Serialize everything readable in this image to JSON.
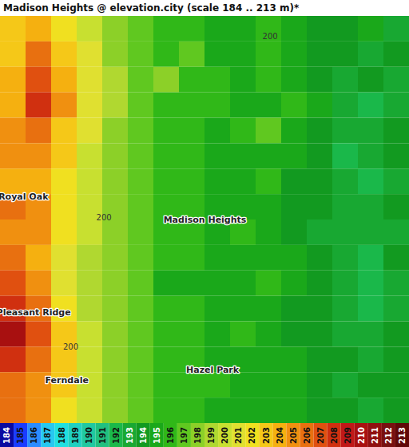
{
  "chart_data": {
    "type": "heatmap",
    "title": "Madison Heights @ elevation.city (scale 184 .. 213 m)*",
    "cells": [
      [
        203,
        204,
        202,
        200,
        198,
        197,
        196,
        196,
        195,
        195,
        196,
        195,
        194,
        194,
        195,
        193
      ],
      [
        203,
        206,
        203,
        201,
        198,
        197,
        196,
        197,
        195,
        195,
        196,
        195,
        194,
        194,
        193,
        194
      ],
      [
        204,
        207,
        204,
        201,
        199,
        197,
        198,
        196,
        196,
        195,
        196,
        195,
        194,
        193,
        194,
        193
      ],
      [
        204,
        208,
        205,
        201,
        199,
        197,
        196,
        196,
        196,
        195,
        195,
        196,
        195,
        193,
        192,
        193
      ],
      [
        205,
        206,
        203,
        201,
        198,
        197,
        196,
        196,
        195,
        196,
        197,
        195,
        194,
        193,
        193,
        194
      ],
      [
        205,
        205,
        203,
        200,
        198,
        197,
        196,
        196,
        195,
        195,
        195,
        195,
        194,
        192,
        193,
        194
      ],
      [
        204,
        204,
        202,
        200,
        198,
        197,
        196,
        196,
        195,
        195,
        196,
        194,
        194,
        193,
        192,
        193
      ],
      [
        206,
        205,
        202,
        200,
        198,
        197,
        196,
        196,
        195,
        195,
        195,
        194,
        194,
        193,
        193,
        194
      ],
      [
        205,
        205,
        202,
        200,
        198,
        197,
        196,
        196,
        195,
        196,
        195,
        194,
        193,
        193,
        193,
        193
      ],
      [
        206,
        204,
        201,
        199,
        198,
        197,
        196,
        196,
        195,
        195,
        195,
        195,
        194,
        193,
        192,
        194
      ],
      [
        207,
        205,
        201,
        199,
        198,
        197,
        195,
        195,
        195,
        195,
        196,
        195,
        194,
        193,
        192,
        193
      ],
      [
        208,
        206,
        202,
        199,
        198,
        197,
        196,
        196,
        195,
        195,
        195,
        194,
        194,
        193,
        192,
        193
      ],
      [
        210,
        207,
        203,
        200,
        198,
        197,
        196,
        196,
        195,
        196,
        195,
        194,
        194,
        193,
        193,
        194
      ],
      [
        208,
        206,
        203,
        200,
        198,
        197,
        196,
        196,
        195,
        195,
        195,
        195,
        194,
        194,
        193,
        194
      ],
      [
        206,
        205,
        203,
        200,
        198,
        197,
        196,
        196,
        196,
        195,
        195,
        195,
        194,
        193,
        194,
        194
      ],
      [
        206,
        205,
        202,
        200,
        198,
        197,
        196,
        196,
        195,
        195,
        195,
        195,
        194,
        194,
        193,
        194
      ]
    ],
    "places": [
      {
        "text": "Royal Oak",
        "col": 0.9,
        "row": 7.1
      },
      {
        "text": "Madison Heights",
        "col": 8.0,
        "row": 8.0
      },
      {
        "text": "Pleasant Ridge",
        "col": 1.3,
        "row": 11.65
      },
      {
        "text": "Ferndale",
        "col": 2.6,
        "row": 14.3
      },
      {
        "text": "Hazel Park",
        "col": 8.3,
        "row": 13.9
      }
    ],
    "contour_labels": [
      {
        "text": "200",
        "col": 4.05,
        "row": 7.9
      },
      {
        "text": "200",
        "col": 10.55,
        "row": 0.8
      },
      {
        "text": "200",
        "col": 2.75,
        "row": 13.0
      }
    ],
    "colorbar": {
      "range": [
        184,
        213
      ],
      "ticks": [
        184,
        185,
        186,
        187,
        188,
        189,
        190,
        191,
        192,
        193,
        194,
        195,
        196,
        197,
        198,
        199,
        200,
        201,
        202,
        203,
        204,
        205,
        206,
        207,
        208,
        209,
        210,
        211,
        212,
        213
      ],
      "colors": [
        "#0a0aa0",
        "#1a3cff",
        "#2b8cff",
        "#27c8f0",
        "#1fe0e0",
        "#20d0c0",
        "#20c8a0",
        "#20c080",
        "#1ab84a",
        "#18a832",
        "#129a20",
        "#1aa81a",
        "#30b818",
        "#60c820",
        "#8cd028",
        "#b0d830",
        "#c8e030",
        "#e0e030",
        "#f0e020",
        "#f5c818",
        "#f5b010",
        "#f09010",
        "#e87010",
        "#e05010",
        "#d03010",
        "#c01818",
        "#a81010",
        "#901010",
        "#781010",
        "#600808"
      ]
    }
  }
}
